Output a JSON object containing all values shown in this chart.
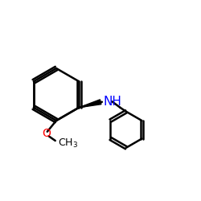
{
  "title": "",
  "bg_color": "#ffffff",
  "bond_color": "#000000",
  "N_color": "#0000ff",
  "O_color": "#ff0000",
  "line_width": 1.8,
  "font_size": 10,
  "figsize": [
    2.5,
    2.5
  ],
  "dpi": 100
}
